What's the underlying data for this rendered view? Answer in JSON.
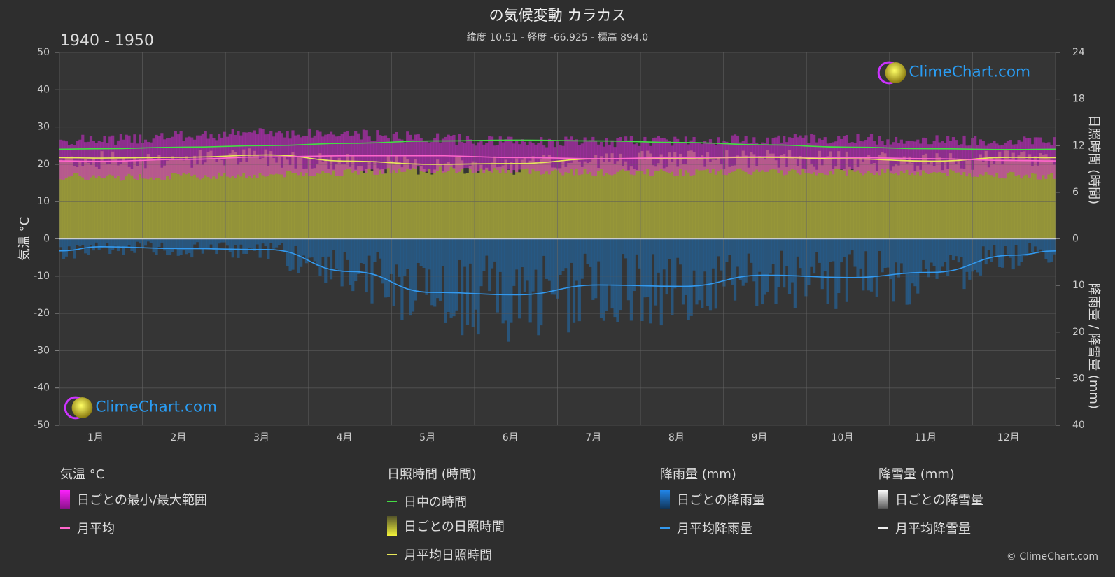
{
  "header": {
    "title": "の気候変動 カラカス",
    "subtitle": "緯度 10.51 - 経度 -66.925 - 標高 894.0",
    "years": "1940 - 1950"
  },
  "watermark": {
    "text": "ClimeChart.com"
  },
  "copyright": "© ClimeChart.com",
  "legend": {
    "temp": {
      "heading": "気温 °C",
      "range_label": "日ごとの最小/最大範囲",
      "avg_label": "月平均"
    },
    "sun": {
      "heading": "日照時間 (時間)",
      "daylight_label": "日中の時間",
      "daily_label": "日ごとの日照時間",
      "avg_label": "月平均日照時間"
    },
    "rain": {
      "heading": "降雨量 (mm)",
      "daily_label": "日ごとの降雨量",
      "avg_label": "月平均降雨量"
    },
    "snow": {
      "heading": "降雪量 (mm)",
      "daily_label": "日ごとの降雪量",
      "avg_label": "月平均降雪量"
    }
  },
  "chart_data": {
    "type": "area",
    "categories": [
      "1月",
      "2月",
      "3月",
      "4月",
      "5月",
      "6月",
      "7月",
      "8月",
      "9月",
      "10月",
      "11月",
      "12月"
    ],
    "left_axis": {
      "label": "気温 °C",
      "ylim": [
        -50,
        50
      ],
      "ticks": [
        50,
        40,
        30,
        20,
        10,
        0,
        -10,
        -20,
        -30,
        -40,
        -50
      ]
    },
    "right_axis_top": {
      "label": "日照時間 (時間)",
      "ylim": [
        0,
        24
      ],
      "ticks": [
        24,
        18,
        12,
        6,
        0
      ]
    },
    "right_axis_bottom": {
      "label": "降雨量 / 降雪量 (mm)",
      "ylim": [
        0,
        40
      ],
      "ticks": [
        0,
        10,
        20,
        30,
        40
      ]
    },
    "grid": true,
    "series": [
      {
        "name": "日中の時間",
        "axis": "sun",
        "color": "#44dd44",
        "values": [
          11.6,
          11.8,
          12.0,
          12.3,
          12.6,
          12.7,
          12.6,
          12.4,
          12.1,
          11.8,
          11.6,
          11.5
        ]
      },
      {
        "name": "月平均日照時間",
        "axis": "sun",
        "color": "#e8e85a",
        "values": [
          10.4,
          10.5,
          10.8,
          10.0,
          9.6,
          9.7,
          10.3,
          10.4,
          10.5,
          10.3,
          10.0,
          10.5
        ]
      },
      {
        "name": "月平均",
        "axis": "temp",
        "color": "#ff66cc",
        "values": [
          20.8,
          21.3,
          22.0,
          22.3,
          22.3,
          21.8,
          21.5,
          21.8,
          22.0,
          21.8,
          21.5,
          21.0
        ]
      },
      {
        "name": "日ごとの最小/最大範囲 (max)",
        "axis": "temp",
        "color": "#cc22cc",
        "values": [
          26.5,
          27.5,
          28.5,
          28.0,
          27.0,
          26.0,
          26.0,
          26.5,
          26.8,
          26.8,
          26.5,
          26.3
        ]
      },
      {
        "name": "日ごとの最小/最大範囲 (min)",
        "axis": "temp",
        "color": "#cc22cc",
        "values": [
          16.5,
          16.8,
          17.2,
          18.0,
          18.5,
          18.3,
          17.8,
          17.8,
          18.0,
          18.0,
          17.8,
          17.0
        ]
      },
      {
        "name": "月平均降雨量",
        "axis": "rain",
        "color": "#3399ee",
        "values": [
          1.7,
          2.1,
          2.3,
          7.0,
          11.5,
          12.0,
          9.9,
          10.2,
          7.8,
          8.3,
          7.2,
          3.5
        ]
      }
    ]
  }
}
